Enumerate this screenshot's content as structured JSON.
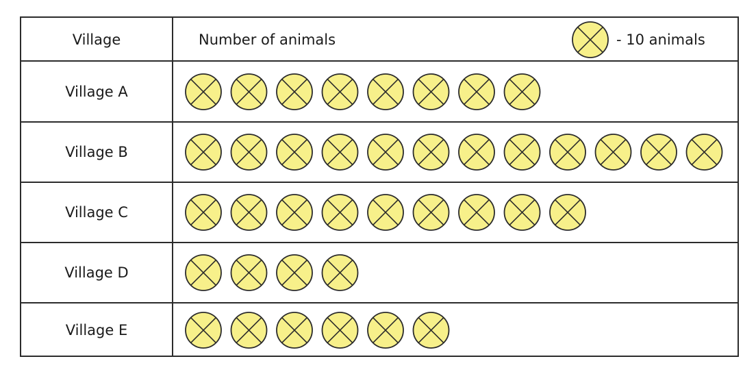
{
  "chart_data": {
    "type": "table",
    "subtype": "pictograph",
    "columns": [
      "Village",
      "Number of animals"
    ],
    "legend": {
      "symbol": "yellow circle with X",
      "text": "- 10 animals",
      "units_per_symbol": 10
    },
    "categories": [
      "Village A",
      "Village B",
      "Village C",
      "Village D",
      "Village E"
    ],
    "symbol_counts": [
      8,
      12,
      9,
      4,
      6
    ],
    "values": [
      80,
      120,
      90,
      40,
      60
    ]
  },
  "colors": {
    "symbol_fill": "#f7f08a",
    "symbol_stroke": "#2b2b2b",
    "grid": "#2b2b2b",
    "text": "#1a1a1a"
  }
}
